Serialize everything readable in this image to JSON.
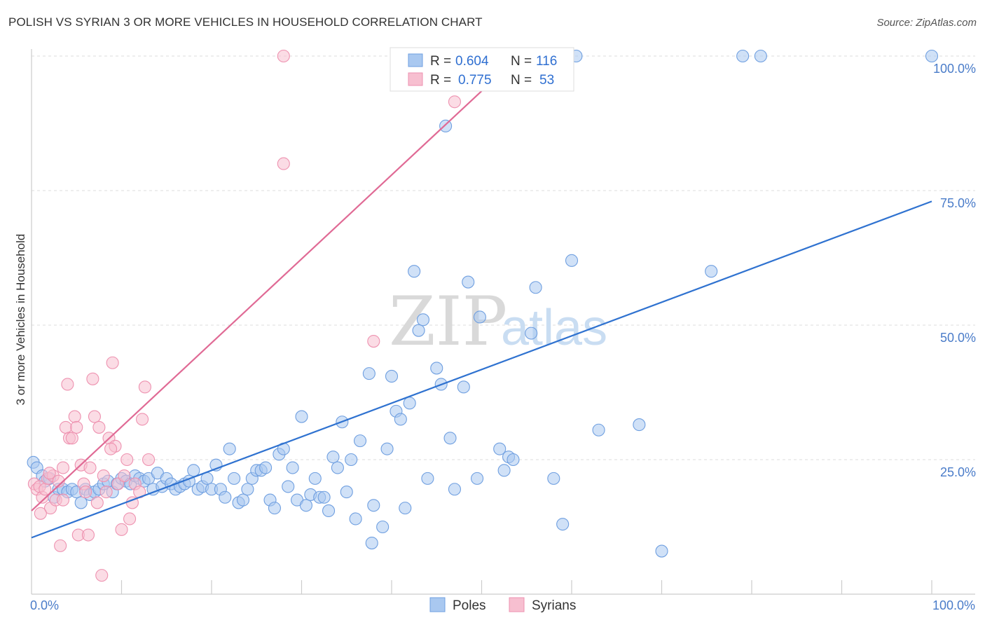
{
  "header": {
    "title": "POLISH VS SYRIAN 3 OR MORE VEHICLES IN HOUSEHOLD CORRELATION CHART",
    "source": "Source: ZipAtlas.com"
  },
  "legend_top": {
    "row1": {
      "r_label": "R = ",
      "r_value": "0.604",
      "n_label": "N = ",
      "n_value": "116"
    },
    "row2": {
      "r_label": "R = ",
      "r_value": "0.775",
      "n_label": "N = ",
      "n_value": "53"
    }
  },
  "legend_bottom": {
    "poles": "Poles",
    "syrians": "Syrians"
  },
  "watermark": {
    "zip": "ZIP",
    "atlas": "atlas"
  },
  "colors": {
    "poles_fill": "#a9c8f0",
    "poles_stroke": "#6f9fe0",
    "poles_line": "#2f72d0",
    "syrians_fill": "#f7bfd0",
    "syrians_stroke": "#ee92b0",
    "syrians_line": "#e06a95",
    "tick_text": "#4a7cc9",
    "grid": "#dddddd"
  },
  "chart_data": {
    "type": "scatter",
    "title": "POLISH VS SYRIAN 3 OR MORE VEHICLES IN HOUSEHOLD CORRELATION CHART",
    "xlabel": "",
    "ylabel": "3 or more Vehicles in Household",
    "xlim": [
      0,
      100
    ],
    "ylim": [
      0,
      100
    ],
    "x_ticks": [
      "0.0%",
      "100.0%"
    ],
    "y_ticks": [
      "25.0%",
      "50.0%",
      "75.0%",
      "100.0%"
    ],
    "y_tick_values": [
      25,
      50,
      75,
      100
    ],
    "grid": true,
    "legend_position": "top-center",
    "series": [
      {
        "name": "Poles",
        "r": 0.604,
        "n": 116,
        "trendline": {
          "x": [
            0,
            100
          ],
          "y": [
            10.5,
            73.0
          ]
        },
        "points": [
          [
            0.2,
            24.5
          ],
          [
            0.6,
            23.5
          ],
          [
            1.2,
            22.0
          ],
          [
            1.5,
            21.0
          ],
          [
            2.0,
            21.5
          ],
          [
            2.5,
            18.0
          ],
          [
            3.0,
            19.5
          ],
          [
            3.5,
            19.5
          ],
          [
            4.0,
            19.0
          ],
          [
            4.5,
            19.5
          ],
          [
            5.0,
            19.0
          ],
          [
            5.5,
            17.0
          ],
          [
            6.0,
            19.5
          ],
          [
            6.5,
            18.5
          ],
          [
            7.0,
            19.0
          ],
          [
            7.5,
            19.5
          ],
          [
            8.0,
            20.5
          ],
          [
            8.5,
            21.0
          ],
          [
            9.0,
            19.0
          ],
          [
            9.5,
            20.5
          ],
          [
            10.0,
            21.5
          ],
          [
            10.5,
            21.0
          ],
          [
            11.0,
            20.5
          ],
          [
            11.5,
            22.0
          ],
          [
            12.0,
            21.5
          ],
          [
            12.5,
            21.0
          ],
          [
            13.0,
            21.5
          ],
          [
            13.5,
            19.5
          ],
          [
            14.0,
            22.5
          ],
          [
            14.5,
            20.0
          ],
          [
            15.0,
            21.5
          ],
          [
            15.5,
            20.5
          ],
          [
            16.0,
            19.5
          ],
          [
            16.5,
            20.0
          ],
          [
            17.0,
            20.5
          ],
          [
            17.5,
            21.0
          ],
          [
            18.0,
            23.0
          ],
          [
            18.5,
            19.5
          ],
          [
            19.0,
            20.0
          ],
          [
            19.5,
            21.5
          ],
          [
            20.0,
            19.5
          ],
          [
            20.5,
            24.0
          ],
          [
            21.0,
            19.5
          ],
          [
            21.5,
            18.0
          ],
          [
            22.0,
            27.0
          ],
          [
            22.5,
            21.5
          ],
          [
            23.0,
            17.0
          ],
          [
            23.5,
            17.5
          ],
          [
            24.0,
            19.5
          ],
          [
            24.5,
            21.5
          ],
          [
            25.0,
            23.0
          ],
          [
            25.5,
            23.0
          ],
          [
            26.0,
            23.5
          ],
          [
            26.5,
            17.5
          ],
          [
            27.0,
            16.0
          ],
          [
            27.5,
            26.0
          ],
          [
            28.0,
            27.0
          ],
          [
            28.5,
            20.0
          ],
          [
            29.0,
            23.5
          ],
          [
            29.5,
            17.5
          ],
          [
            30.0,
            33.0
          ],
          [
            30.5,
            16.5
          ],
          [
            31.0,
            18.5
          ],
          [
            31.5,
            21.5
          ],
          [
            32.0,
            18.0
          ],
          [
            32.5,
            18.0
          ],
          [
            33.0,
            15.5
          ],
          [
            33.5,
            25.5
          ],
          [
            34.0,
            23.5
          ],
          [
            34.5,
            32.0
          ],
          [
            35.0,
            19.0
          ],
          [
            35.5,
            25.0
          ],
          [
            36.0,
            14.0
          ],
          [
            36.5,
            28.5
          ],
          [
            37.5,
            41.0
          ],
          [
            37.8,
            9.5
          ],
          [
            38.0,
            16.5
          ],
          [
            39.0,
            12.5
          ],
          [
            39.5,
            27.0
          ],
          [
            40.0,
            40.5
          ],
          [
            40.5,
            34.0
          ],
          [
            41.0,
            32.5
          ],
          [
            41.5,
            16.0
          ],
          [
            42.0,
            35.5
          ],
          [
            42.5,
            60.0
          ],
          [
            43.0,
            49.0
          ],
          [
            43.5,
            51.0
          ],
          [
            44.0,
            21.5
          ],
          [
            45.0,
            42.0
          ],
          [
            45.5,
            39.0
          ],
          [
            46.0,
            87.0
          ],
          [
            46.5,
            29.0
          ],
          [
            47.0,
            19.5
          ],
          [
            48.0,
            38.5
          ],
          [
            48.5,
            58.0
          ],
          [
            49.5,
            21.5
          ],
          [
            49.8,
            51.5
          ],
          [
            52.0,
            27.0
          ],
          [
            52.5,
            23.0
          ],
          [
            53.0,
            25.5
          ],
          [
            53.5,
            25.0
          ],
          [
            56.0,
            57.0
          ],
          [
            58.0,
            21.5
          ],
          [
            59.0,
            13.0
          ],
          [
            60.0,
            62.0
          ],
          [
            63.0,
            30.5
          ],
          [
            67.5,
            31.5
          ],
          [
            70.0,
            8.0
          ],
          [
            75.5,
            60.0
          ],
          [
            55.5,
            48.5
          ],
          [
            60.5,
            100.0
          ],
          [
            79.0,
            100.0
          ],
          [
            81.0,
            100.0
          ],
          [
            100.0,
            100.0
          ],
          [
            50.0,
            100.0
          ],
          [
            49.0,
            100.0
          ]
        ]
      },
      {
        "name": "Syrians",
        "r": 0.775,
        "n": 53,
        "trendline": {
          "x": [
            0,
            50
          ],
          "y": [
            15.5,
            93.5
          ]
        },
        "points": [
          [
            0.3,
            20.5
          ],
          [
            0.6,
            19.5
          ],
          [
            0.9,
            20.0
          ],
          [
            1.2,
            18.0
          ],
          [
            1.5,
            19.5
          ],
          [
            1.8,
            21.5
          ],
          [
            2.1,
            16.0
          ],
          [
            2.4,
            22.0
          ],
          [
            2.7,
            17.5
          ],
          [
            3.0,
            21.0
          ],
          [
            3.2,
            9.0
          ],
          [
            3.5,
            23.5
          ],
          [
            3.8,
            31.0
          ],
          [
            4.0,
            39.0
          ],
          [
            4.2,
            29.0
          ],
          [
            4.5,
            29.0
          ],
          [
            4.8,
            33.0
          ],
          [
            5.0,
            31.0
          ],
          [
            5.2,
            11.0
          ],
          [
            5.5,
            24.0
          ],
          [
            5.8,
            20.5
          ],
          [
            6.0,
            19.0
          ],
          [
            6.3,
            11.0
          ],
          [
            6.5,
            23.5
          ],
          [
            6.8,
            40.0
          ],
          [
            7.0,
            33.0
          ],
          [
            7.3,
            17.0
          ],
          [
            7.5,
            31.0
          ],
          [
            7.8,
            3.5
          ],
          [
            8.0,
            22.0
          ],
          [
            8.3,
            19.0
          ],
          [
            8.6,
            29.0
          ],
          [
            9.0,
            43.0
          ],
          [
            9.3,
            27.5
          ],
          [
            9.6,
            20.5
          ],
          [
            10.0,
            12.0
          ],
          [
            10.3,
            22.0
          ],
          [
            10.6,
            25.0
          ],
          [
            10.9,
            14.0
          ],
          [
            11.2,
            17.0
          ],
          [
            11.5,
            20.5
          ],
          [
            12.0,
            19.0
          ],
          [
            12.3,
            32.5
          ],
          [
            12.6,
            38.5
          ],
          [
            13.0,
            25.0
          ],
          [
            28.0,
            100.0
          ],
          [
            28.0,
            80.0
          ],
          [
            38.0,
            47.0
          ],
          [
            47.0,
            91.5
          ],
          [
            1.0,
            15.0
          ],
          [
            2.0,
            22.5
          ],
          [
            3.5,
            17.5
          ],
          [
            8.8,
            27.0
          ]
        ]
      }
    ]
  }
}
